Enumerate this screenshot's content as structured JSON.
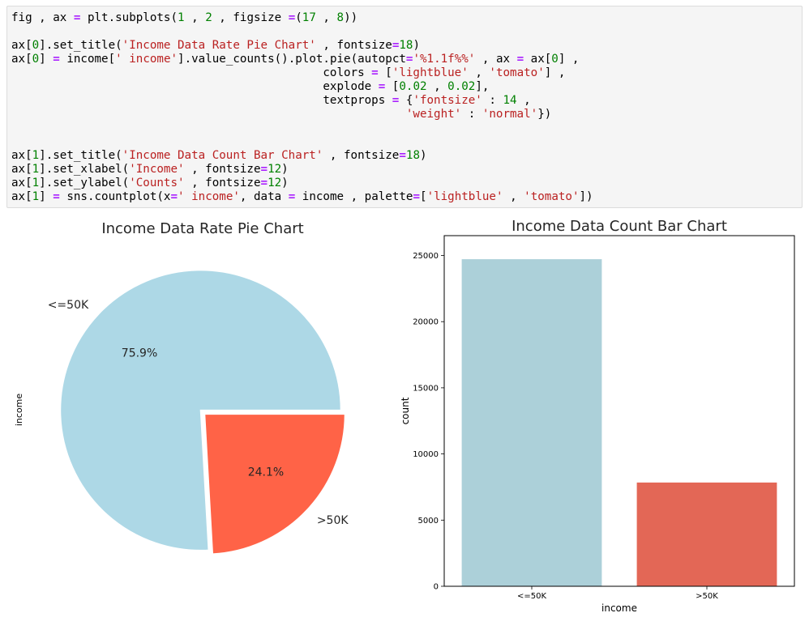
{
  "code_cell": {
    "lines": [
      [
        [
          "fig , ax ",
          "t"
        ],
        [
          "=",
          "o"
        ],
        [
          " plt.subplots(",
          "t"
        ],
        [
          "1",
          "n"
        ],
        [
          " , ",
          "t"
        ],
        [
          "2",
          "n"
        ],
        [
          " , figsize ",
          "t"
        ],
        [
          "=",
          "o"
        ],
        [
          "(",
          "t"
        ],
        [
          "17",
          "n"
        ],
        [
          " , ",
          "t"
        ],
        [
          "8",
          "n"
        ],
        [
          "))",
          "t"
        ]
      ],
      [],
      [
        [
          "ax[",
          "t"
        ],
        [
          "0",
          "n"
        ],
        [
          "].set_title(",
          "t"
        ],
        [
          "'Income Data Rate Pie Chart'",
          "s"
        ],
        [
          " , fontsize",
          "t"
        ],
        [
          "=",
          "o"
        ],
        [
          "18",
          "n"
        ],
        [
          ")",
          "t"
        ]
      ],
      [
        [
          "ax[",
          "t"
        ],
        [
          "0",
          "n"
        ],
        [
          "] ",
          "t"
        ],
        [
          "=",
          "o"
        ],
        [
          " income[",
          "t"
        ],
        [
          "' income'",
          "s"
        ],
        [
          "].value_counts().plot.pie(autopct",
          "t"
        ],
        [
          "=",
          "o"
        ],
        [
          "'%1.1f%%'",
          "s"
        ],
        [
          " , ax ",
          "t"
        ],
        [
          "=",
          "o"
        ],
        [
          " ax[",
          "t"
        ],
        [
          "0",
          "n"
        ],
        [
          "] ,",
          "t"
        ]
      ],
      [
        [
          "                                             colors ",
          "t"
        ],
        [
          "=",
          "o"
        ],
        [
          " [",
          "t"
        ],
        [
          "'lightblue'",
          "s"
        ],
        [
          " , ",
          "t"
        ],
        [
          "'tomato'",
          "s"
        ],
        [
          "] ,",
          "t"
        ]
      ],
      [
        [
          "                                             explode ",
          "t"
        ],
        [
          "=",
          "o"
        ],
        [
          " [",
          "t"
        ],
        [
          "0.02",
          "n"
        ],
        [
          " , ",
          "t"
        ],
        [
          "0.02",
          "n"
        ],
        [
          "],",
          "t"
        ]
      ],
      [
        [
          "                                             textprops ",
          "t"
        ],
        [
          "=",
          "o"
        ],
        [
          " {",
          "t"
        ],
        [
          "'fontsize'",
          "s"
        ],
        [
          " : ",
          "t"
        ],
        [
          "14",
          "n"
        ],
        [
          " ,",
          "t"
        ]
      ],
      [
        [
          "                                                         ",
          "t"
        ],
        [
          "'weight'",
          "s"
        ],
        [
          " : ",
          "t"
        ],
        [
          "'normal'",
          "s"
        ],
        [
          "})",
          "t"
        ]
      ],
      [],
      [],
      [
        [
          "ax[",
          "t"
        ],
        [
          "1",
          "n"
        ],
        [
          "].set_title(",
          "t"
        ],
        [
          "'Income Data Count Bar Chart'",
          "s"
        ],
        [
          " , fontsize",
          "t"
        ],
        [
          "=",
          "o"
        ],
        [
          "18",
          "n"
        ],
        [
          ")",
          "t"
        ]
      ],
      [
        [
          "ax[",
          "t"
        ],
        [
          "1",
          "n"
        ],
        [
          "].set_xlabel(",
          "t"
        ],
        [
          "'Income'",
          "s"
        ],
        [
          " , fontsize",
          "t"
        ],
        [
          "=",
          "o"
        ],
        [
          "12",
          "n"
        ],
        [
          ")",
          "t"
        ]
      ],
      [
        [
          "ax[",
          "t"
        ],
        [
          "1",
          "n"
        ],
        [
          "].set_ylabel(",
          "t"
        ],
        [
          "'Counts'",
          "s"
        ],
        [
          " , fontsize",
          "t"
        ],
        [
          "=",
          "o"
        ],
        [
          "12",
          "n"
        ],
        [
          ")",
          "t"
        ]
      ],
      [
        [
          "ax[",
          "t"
        ],
        [
          "1",
          "n"
        ],
        [
          "] ",
          "t"
        ],
        [
          "=",
          "o"
        ],
        [
          " sns.countplot(x",
          "t"
        ],
        [
          "=",
          "o"
        ],
        [
          "' income'",
          "s"
        ],
        [
          ", data ",
          "t"
        ],
        [
          "=",
          "o"
        ],
        [
          " income , palette",
          "t"
        ],
        [
          "=",
          "o"
        ],
        [
          "[",
          "t"
        ],
        [
          "'lightblue'",
          "s"
        ],
        [
          " , ",
          "t"
        ],
        [
          "'tomato'",
          "s"
        ],
        [
          "])",
          "t"
        ]
      ]
    ]
  },
  "colors": {
    "lightblue": "#add8e6",
    "tomato": "#ff6347",
    "bar_blue": "#acd0d9",
    "bar_red": "#e36756",
    "text": "#262626"
  },
  "chart_data": [
    {
      "type": "pie",
      "title": "Income Data Rate Pie Chart",
      "ylabel": "income",
      "labels": [
        "<=50K",
        ">50K"
      ],
      "values": [
        75.9,
        24.1
      ],
      "autopct": [
        "75.9%",
        "24.1%"
      ],
      "colors": [
        "#add8e6",
        "#ff6347"
      ],
      "explode": [
        0.02,
        0.02
      ]
    },
    {
      "type": "bar",
      "title": "Income Data Count Bar Chart",
      "xlabel": "income",
      "ylabel": "count",
      "categories": [
        "<=50K",
        ">50K"
      ],
      "values": [
        24720,
        7841
      ],
      "colors": [
        "#acd0d9",
        "#e36756"
      ],
      "ylim": [
        0,
        26500
      ],
      "yticks": [
        0,
        5000,
        10000,
        15000,
        20000,
        25000
      ],
      "ytick_labels": [
        "0",
        "5000",
        "10000",
        "15000",
        "20000",
        "25000"
      ],
      "grid": false
    }
  ]
}
